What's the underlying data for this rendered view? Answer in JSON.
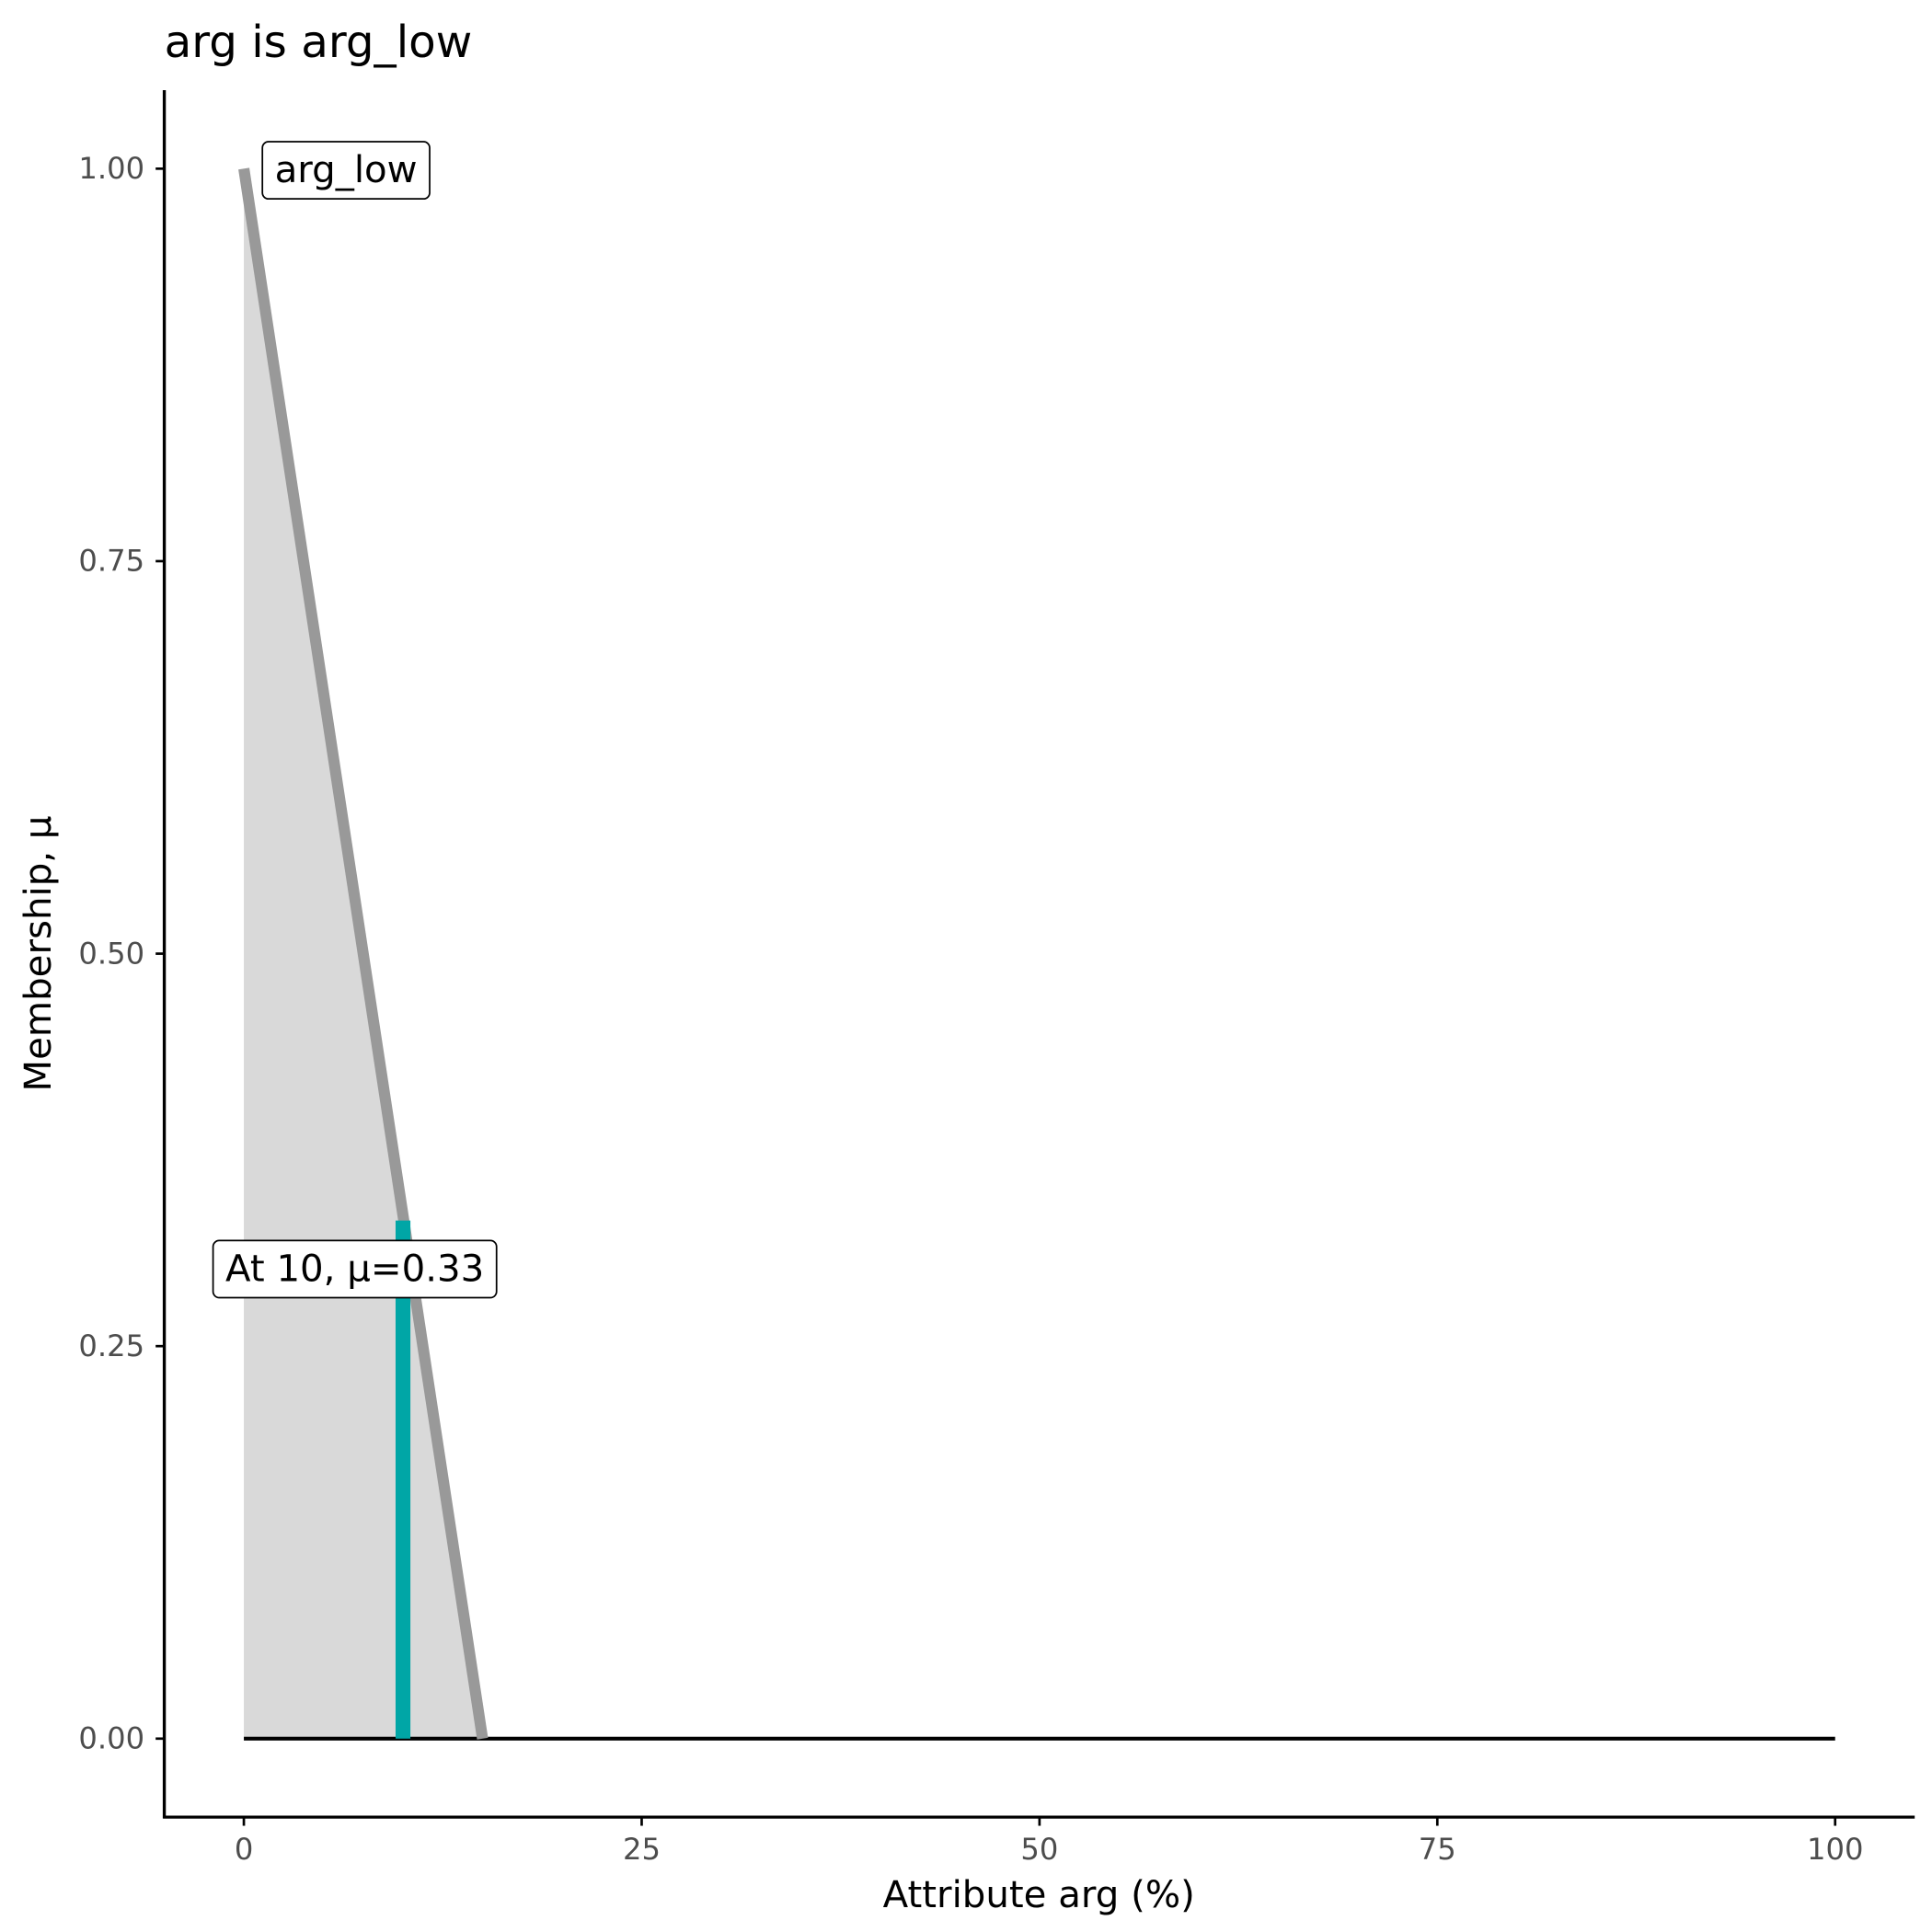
{
  "chart_data": {
    "type": "line",
    "title": "arg is arg_low",
    "x_label": "Attribute arg (%)",
    "y_label": "Membership, μ",
    "series": [
      {
        "name": "arg_low",
        "color": "#999999",
        "x": [
          0,
          15
        ],
        "values": [
          1,
          0
        ]
      }
    ],
    "fill_color": "#d9d9d9",
    "baseline": {
      "x": [
        0,
        100
      ],
      "values": [
        0,
        0
      ],
      "color": "#000000"
    },
    "marker": {
      "x": 10,
      "value": 0.33,
      "label": "At 10, μ=0.33",
      "color": "#00a6a6"
    },
    "xlim": [
      -5,
      105
    ],
    "ylim": [
      -0.05,
      1.05
    ],
    "xticks": [
      0,
      25,
      50,
      75,
      100
    ],
    "yticks": [
      {
        "value": 0,
        "label": "0.00"
      },
      {
        "value": 0.25,
        "label": "0.25"
      },
      {
        "value": 0.5,
        "label": "0.50"
      },
      {
        "value": 0.75,
        "label": "0.75"
      },
      {
        "value": 1,
        "label": "1.00"
      }
    ]
  }
}
